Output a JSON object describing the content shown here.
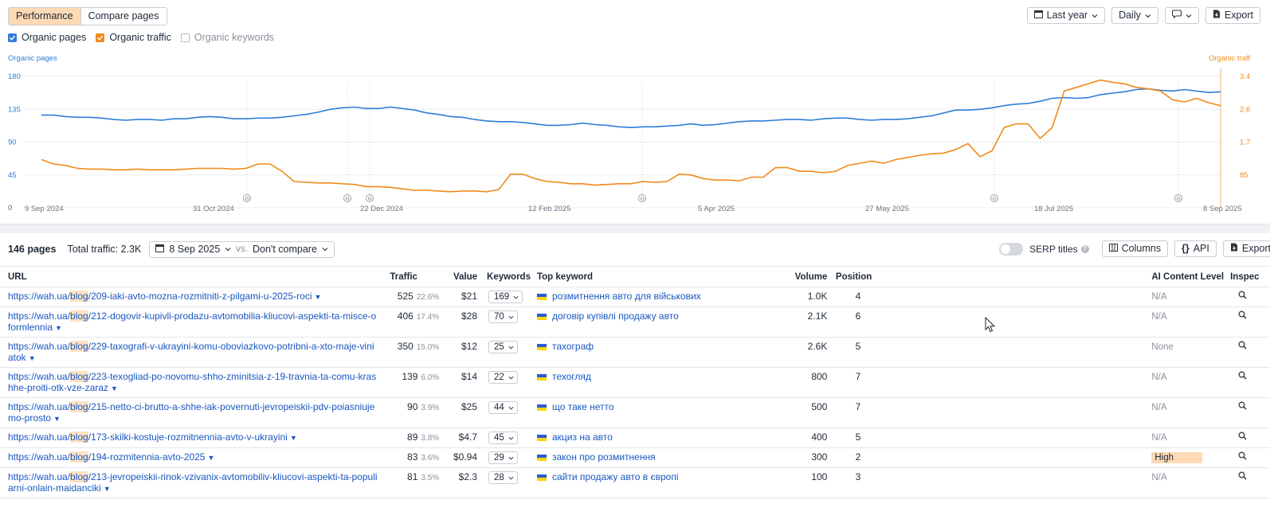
{
  "toolbar": {
    "tabs": [
      "Performance",
      "Compare pages"
    ],
    "range": "Last year",
    "interval": "Daily",
    "export": "Export"
  },
  "legend": {
    "organic_pages": "Organic pages",
    "organic_traffic": "Organic traffic",
    "organic_keywords": "Organic keywords"
  },
  "chart_data": {
    "type": "line",
    "left_axis_title": "Organic pages",
    "right_axis_title": "Organic traff",
    "left_ticks": [
      "180",
      "135",
      "90",
      "45",
      "0"
    ],
    "right_ticks": [
      "3.4",
      "2.6",
      "1.7",
      "85",
      ""
    ],
    "x_ticks": [
      "9 Sep 2024",
      "31 Oct 2024",
      "22 Dec 2024",
      "12 Feb 2025",
      "5 Apr 2025",
      "27 May 2025",
      "18 Jul 2025",
      "8 Sep 2025"
    ],
    "ylim_left": [
      0,
      180
    ],
    "series": [
      {
        "name": "Organic pages",
        "color": "#2f7ed8",
        "values": [
          127,
          127,
          125,
          124,
          124,
          123,
          121,
          120,
          121,
          121,
          120,
          122,
          122,
          124,
          125,
          124,
          122,
          122,
          123,
          123,
          124,
          126,
          128,
          131,
          135,
          137,
          138,
          136,
          136,
          138,
          136,
          134,
          130,
          128,
          125,
          124,
          121,
          119,
          118,
          118,
          117,
          115,
          113,
          113,
          114,
          116,
          114,
          113,
          111,
          110,
          111,
          111,
          112,
          113,
          115,
          113,
          114,
          116,
          118,
          119,
          119,
          120,
          121,
          121,
          120,
          122,
          123,
          123,
          121,
          120,
          121,
          121,
          122,
          124,
          126,
          130,
          134,
          134,
          135,
          137,
          140,
          142,
          143,
          146,
          150,
          151,
          150,
          151,
          155,
          157,
          159,
          162,
          163,
          161,
          160,
          162,
          160,
          158,
          159
        ]
      },
      {
        "name": "Organic traffic",
        "color": "#f08a1c",
        "values": [
          66,
          60,
          58,
          54,
          53,
          53,
          52,
          52,
          53,
          52,
          52,
          52,
          53,
          54,
          54,
          54,
          53,
          54,
          60,
          60,
          50,
          36,
          35,
          34,
          34,
          33,
          32,
          29,
          29,
          28,
          26,
          24,
          24,
          23,
          22,
          23,
          23,
          22,
          25,
          46,
          46,
          40,
          36,
          35,
          33,
          33,
          31,
          32,
          33,
          33,
          36,
          35,
          36,
          46,
          45,
          40,
          38,
          38,
          37,
          42,
          42,
          55,
          55,
          50,
          50,
          48,
          50,
          58,
          61,
          64,
          61,
          66,
          69,
          72,
          74,
          75,
          80,
          88,
          70,
          78,
          110,
          115,
          115,
          95,
          110,
          160,
          165,
          170,
          175,
          172,
          170,
          165,
          163,
          160,
          148,
          145,
          150,
          144,
          140
        ]
      }
    ]
  },
  "summary": {
    "pages": "146 pages",
    "total_traffic": "Total traffic: 2.3K",
    "date": "8 Sep 2025",
    "vs": "vs.",
    "compare": "Don't compare",
    "serp_titles": "SERP titles",
    "columns": "Columns",
    "api": "API",
    "export": "Export"
  },
  "table": {
    "headers": {
      "url": "URL",
      "traffic": "Traffic",
      "value": "Value",
      "keywords": "Keywords",
      "top_keyword": "Top keyword",
      "volume": "Volume",
      "position": "Position",
      "ai": "AI Content Level",
      "inspect": "Inspec"
    },
    "rows": [
      {
        "url_pre": "https://wah.ua/",
        "url_hl": "blog",
        "url_post": "/209-iaki-avto-mozna-rozmitniti-z-pilgami-u-2025-roci",
        "traffic": "525",
        "pct": "22.6%",
        "value": "$21",
        "keywords": "169",
        "top": "розмитнення авто для військових",
        "volume": "1.0K",
        "position": "4",
        "ai": "N/A"
      },
      {
        "url_pre": "https://wah.ua/",
        "url_hl": "blog",
        "url_post": "/212-dogovir-kupivli-prodazu-avtomobilia-kliucovi-aspekti-ta-misce-oformlennia",
        "traffic": "406",
        "pct": "17.4%",
        "value": "$28",
        "keywords": "70",
        "top": "договір купівлі продажу авто",
        "volume": "2.1K",
        "position": "6",
        "ai": "N/A"
      },
      {
        "url_pre": "https://wah.ua/",
        "url_hl": "blog",
        "url_post": "/229-taxografi-v-ukrayini-komu-oboviazkovo-potribni-a-xto-maje-viniatok",
        "traffic": "350",
        "pct": "15.0%",
        "value": "$12",
        "keywords": "25",
        "top": "тахограф",
        "volume": "2.6K",
        "position": "5",
        "ai": "None"
      },
      {
        "url_pre": "https://wah.ua/",
        "url_hl": "blog",
        "url_post": "/223-texogliad-po-novomu-shho-zminitsia-z-19-travnia-ta-comu-krashhe-proiti-otk-vze-zaraz",
        "traffic": "139",
        "pct": "6.0%",
        "value": "$14",
        "keywords": "22",
        "top": "техогляд",
        "volume": "800",
        "position": "7",
        "ai": "N/A"
      },
      {
        "url_pre": "https://wah.ua/",
        "url_hl": "blog",
        "url_post": "/215-netto-ci-brutto-a-shhe-iak-povernuti-jevropeiskii-pdv-poiasniujemo-prosto",
        "traffic": "90",
        "pct": "3.9%",
        "value": "$25",
        "keywords": "44",
        "top": "що таке нетто",
        "volume": "500",
        "position": "7",
        "ai": "N/A"
      },
      {
        "url_pre": "https://wah.ua/",
        "url_hl": "blog",
        "url_post": "/173-skilki-kostuje-rozmitnennia-avto-v-ukrayini",
        "traffic": "89",
        "pct": "3.8%",
        "value": "$4.7",
        "keywords": "45",
        "top": "акциз на авто",
        "volume": "400",
        "position": "5",
        "ai": "N/A"
      },
      {
        "url_pre": "https://wah.ua/",
        "url_hl": "blog",
        "url_post": "/194-rozmitennia-avto-2025",
        "traffic": "83",
        "pct": "3.6%",
        "value": "$0.94",
        "keywords": "29",
        "top": "закон про розмитнення",
        "volume": "300",
        "position": "2",
        "ai": "High"
      },
      {
        "url_pre": "https://wah.ua/",
        "url_hl": "blog",
        "url_post": "/213-jevropeiskii-rinok-vzivanix-avtomobiliv-kliucovi-aspekti-ta-populiarni-onlain-maidanciki",
        "traffic": "81",
        "pct": "3.5%",
        "value": "$2.3",
        "keywords": "28",
        "top": "сайти продажу авто в європі",
        "volume": "100",
        "position": "3",
        "ai": "N/A"
      }
    ]
  }
}
